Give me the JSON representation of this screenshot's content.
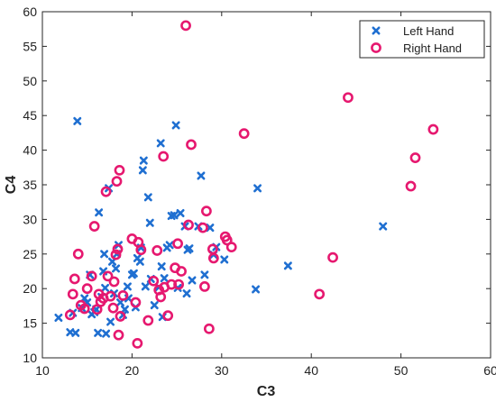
{
  "chart_data": {
    "type": "scatter",
    "title": "",
    "xlabel": "C3",
    "ylabel": "C4",
    "xlim": [
      10,
      60
    ],
    "ylim": [
      10,
      60
    ],
    "xticks": [
      10,
      20,
      30,
      40,
      50,
      60
    ],
    "yticks": [
      10,
      15,
      20,
      25,
      30,
      35,
      40,
      45,
      50,
      55,
      60
    ],
    "grid": false,
    "legend_position": "top-right",
    "series": [
      {
        "name": "Left Hand",
        "marker": "x",
        "color": "#1f6fd1",
        "points": [
          [
            11.8,
            15.8
          ],
          [
            13.1,
            13.7
          ],
          [
            13.4,
            16.5
          ],
          [
            13.7,
            13.6
          ],
          [
            13.9,
            44.2
          ],
          [
            14.4,
            17.2
          ],
          [
            14.7,
            18.6
          ],
          [
            15.0,
            18.0
          ],
          [
            15.3,
            22.0
          ],
          [
            15.5,
            16.3
          ],
          [
            15.8,
            16.6
          ],
          [
            16.0,
            17.0
          ],
          [
            16.2,
            13.6
          ],
          [
            16.3,
            31.0
          ],
          [
            16.6,
            18.8
          ],
          [
            16.8,
            22.5
          ],
          [
            16.9,
            25.0
          ],
          [
            17.0,
            20.1
          ],
          [
            17.1,
            13.5
          ],
          [
            17.4,
            34.5
          ],
          [
            17.6,
            15.2
          ],
          [
            17.8,
            23.9
          ],
          [
            18.0,
            19.3
          ],
          [
            18.2,
            22.9
          ],
          [
            18.3,
            25.0
          ],
          [
            18.5,
            26.3
          ],
          [
            18.7,
            18.0
          ],
          [
            19.0,
            16.2
          ],
          [
            19.2,
            17.0
          ],
          [
            19.5,
            20.3
          ],
          [
            19.6,
            18.6
          ],
          [
            20.0,
            22.0
          ],
          [
            20.2,
            22.2
          ],
          [
            20.4,
            17.3
          ],
          [
            20.6,
            24.4
          ],
          [
            20.9,
            23.9
          ],
          [
            21.0,
            25.9
          ],
          [
            21.2,
            37.1
          ],
          [
            21.3,
            38.5
          ],
          [
            21.5,
            20.3
          ],
          [
            21.8,
            33.2
          ],
          [
            22.0,
            29.5
          ],
          [
            22.1,
            21.4
          ],
          [
            22.5,
            17.6
          ],
          [
            23.0,
            20.2
          ],
          [
            23.2,
            41.0
          ],
          [
            23.3,
            23.2
          ],
          [
            23.4,
            15.9
          ],
          [
            23.6,
            21.5
          ],
          [
            23.9,
            25.9
          ],
          [
            24.2,
            26.3
          ],
          [
            24.4,
            30.5
          ],
          [
            24.7,
            30.6
          ],
          [
            24.9,
            43.6
          ],
          [
            25.1,
            20.1
          ],
          [
            25.4,
            30.9
          ],
          [
            25.9,
            29.0
          ],
          [
            26.1,
            19.3
          ],
          [
            26.2,
            25.6
          ],
          [
            26.4,
            25.8
          ],
          [
            26.7,
            21.2
          ],
          [
            27.4,
            29.0
          ],
          [
            27.7,
            36.3
          ],
          [
            28.1,
            22.0
          ],
          [
            28.7,
            28.8
          ],
          [
            29.1,
            24.9
          ],
          [
            29.4,
            26.0
          ],
          [
            30.3,
            24.2
          ],
          [
            33.8,
            19.9
          ],
          [
            34.0,
            34.5
          ],
          [
            37.4,
            23.3
          ],
          [
            48.0,
            29.0
          ]
        ]
      },
      {
        "name": "Right Hand",
        "marker": "o",
        "color": "#e6186f",
        "points": [
          [
            13.1,
            16.2
          ],
          [
            13.4,
            19.2
          ],
          [
            13.6,
            21.4
          ],
          [
            14.0,
            25.0
          ],
          [
            14.3,
            17.6
          ],
          [
            14.7,
            17.1
          ],
          [
            15.0,
            20.0
          ],
          [
            15.5,
            21.8
          ],
          [
            15.8,
            29.0
          ],
          [
            16.1,
            17.0
          ],
          [
            16.3,
            19.2
          ],
          [
            16.5,
            18.1
          ],
          [
            16.8,
            18.6
          ],
          [
            17.1,
            34.0
          ],
          [
            17.3,
            21.8
          ],
          [
            17.6,
            18.9
          ],
          [
            17.9,
            17.2
          ],
          [
            18.0,
            21.0
          ],
          [
            18.2,
            24.9
          ],
          [
            18.3,
            35.5
          ],
          [
            18.4,
            25.7
          ],
          [
            18.6,
            37.1
          ],
          [
            18.7,
            16.0
          ],
          [
            18.5,
            13.3
          ],
          [
            19.0,
            19.0
          ],
          [
            20.0,
            27.2
          ],
          [
            20.4,
            18.0
          ],
          [
            20.6,
            12.1
          ],
          [
            20.7,
            26.7
          ],
          [
            21.0,
            25.6
          ],
          [
            21.8,
            15.4
          ],
          [
            22.4,
            21.1
          ],
          [
            22.8,
            25.5
          ],
          [
            23.0,
            19.8
          ],
          [
            23.2,
            18.8
          ],
          [
            23.5,
            39.1
          ],
          [
            23.6,
            20.2
          ],
          [
            24.0,
            16.1
          ],
          [
            24.4,
            20.6
          ],
          [
            24.8,
            23.0
          ],
          [
            25.1,
            26.5
          ],
          [
            25.2,
            20.6
          ],
          [
            25.5,
            22.5
          ],
          [
            26.0,
            58.0
          ],
          [
            26.3,
            29.2
          ],
          [
            26.6,
            40.8
          ],
          [
            27.9,
            28.8
          ],
          [
            28.1,
            20.3
          ],
          [
            28.3,
            31.2
          ],
          [
            28.6,
            14.2
          ],
          [
            29.0,
            25.7
          ],
          [
            29.1,
            24.4
          ],
          [
            30.4,
            27.5
          ],
          [
            30.6,
            27.0
          ],
          [
            31.1,
            26.0
          ],
          [
            32.5,
            42.4
          ],
          [
            40.9,
            19.2
          ],
          [
            42.4,
            24.5
          ],
          [
            44.1,
            47.6
          ],
          [
            51.1,
            34.8
          ],
          [
            51.6,
            38.9
          ],
          [
            53.6,
            43.0
          ]
        ]
      }
    ]
  }
}
